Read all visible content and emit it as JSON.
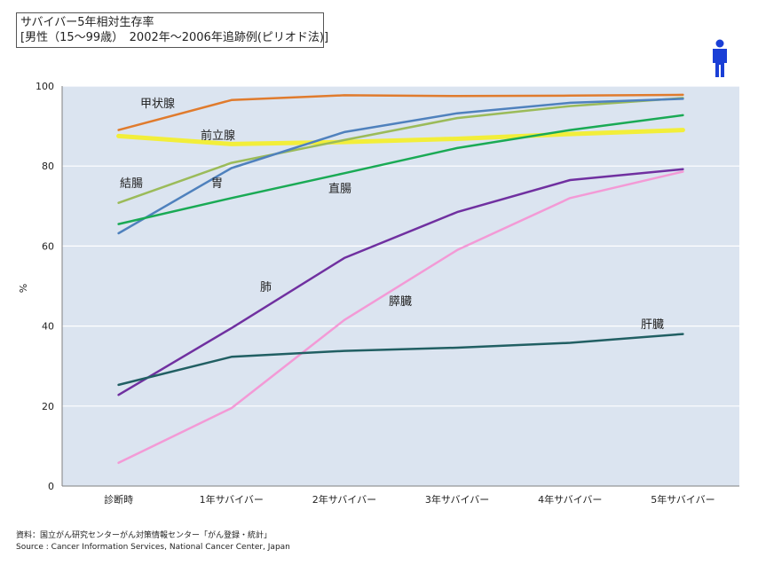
{
  "title": {
    "line1": "サバイバー5年相対生存率",
    "line2": "[男性（15～99歳）　2002年～2006年追跡例(ピリオド法)]"
  },
  "icon": {
    "name": "male-person-icon",
    "color": "#1a3fd6"
  },
  "source": {
    "line1": "資料：国立がん研究センターがん対策情報センター「がん登録・統計」",
    "line2": "Source : Cancer Information Services, National Cancer Center, Japan"
  },
  "chart_data": {
    "type": "line",
    "title": "サバイバー5年相対生存率",
    "subtitle": "[男性（15～99歳）　2002年～2006年追跡例(ピリオド法)]",
    "xlabel": "",
    "ylabel": "%",
    "ylim": [
      0,
      100
    ],
    "yticks": [
      0,
      20,
      40,
      60,
      80,
      100
    ],
    "grid": true,
    "legend": "inline-labels",
    "categories": [
      "診断時",
      "1年サバイバー",
      "2年サバイバー",
      "3年サバイバー",
      "4年サバイバー",
      "5年サバイバー"
    ],
    "series": [
      {
        "name": "甲状腺",
        "color": "#e07b2d",
        "values": [
          89.0,
          96.5,
          97.7,
          97.5,
          97.6,
          97.8
        ]
      },
      {
        "name": "前立腺",
        "color": "#f2ee3a",
        "values": [
          87.5,
          85.5,
          86.0,
          86.8,
          88.0,
          89.0
        ]
      },
      {
        "name": "結腸",
        "color": "#9bbb59",
        "values": [
          70.8,
          80.8,
          86.5,
          92.0,
          95.0,
          97.0
        ]
      },
      {
        "name": "胃",
        "color": "#4f81bd",
        "values": [
          63.2,
          79.5,
          88.5,
          93.2,
          95.8,
          96.8
        ]
      },
      {
        "name": "直腸",
        "color": "#1aaa55",
        "values": [
          65.5,
          72.0,
          78.2,
          84.5,
          89.0,
          92.7
        ]
      },
      {
        "name": "肺",
        "color": "#7030a0",
        "values": [
          22.8,
          39.5,
          57.0,
          68.5,
          76.5,
          79.2
        ]
      },
      {
        "name": "膵臓",
        "color": "#f39ad6",
        "values": [
          5.8,
          19.5,
          41.5,
          59.0,
          72.0,
          78.6
        ]
      },
      {
        "name": "肝臓",
        "color": "#215f63",
        "values": [
          25.3,
          32.3,
          33.8,
          34.6,
          35.8,
          38.0
        ]
      }
    ]
  }
}
